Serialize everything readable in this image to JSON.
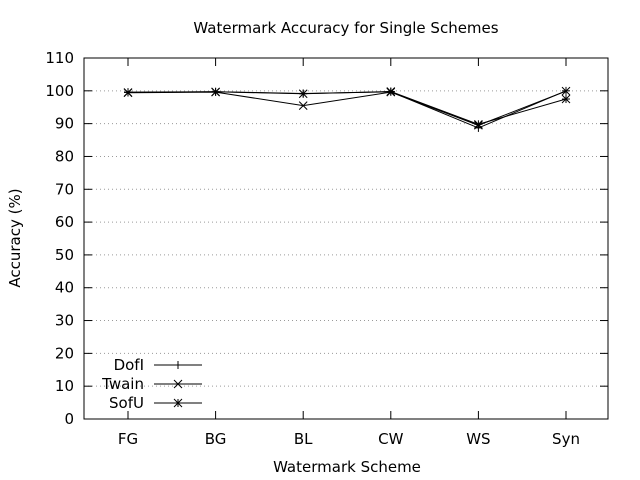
{
  "chart_data": {
    "type": "line",
    "title": "Watermark Accuracy for Single Schemes",
    "xlabel": "Watermark Scheme",
    "ylabel": "Accuracy (%)",
    "categories": [
      "FG",
      "BG",
      "BL",
      "CW",
      "WS",
      "Syn"
    ],
    "ylim": [
      0,
      110
    ],
    "yticks": [
      0,
      10,
      20,
      30,
      40,
      50,
      60,
      70,
      80,
      90,
      100,
      110
    ],
    "grid": true,
    "legend_position": "bottom-left",
    "series": [
      {
        "name": "DofI",
        "marker": "plus",
        "values": [
          99.6,
          99.7,
          99.2,
          99.7,
          88.7,
          100
        ]
      },
      {
        "name": "Twain",
        "marker": "cross",
        "values": [
          99.4,
          99.6,
          95.5,
          99.6,
          89.5,
          99.9
        ]
      },
      {
        "name": "SofU",
        "marker": "star",
        "values": [
          99.5,
          99.7,
          99.1,
          99.8,
          89.8,
          97.5
        ]
      }
    ]
  }
}
